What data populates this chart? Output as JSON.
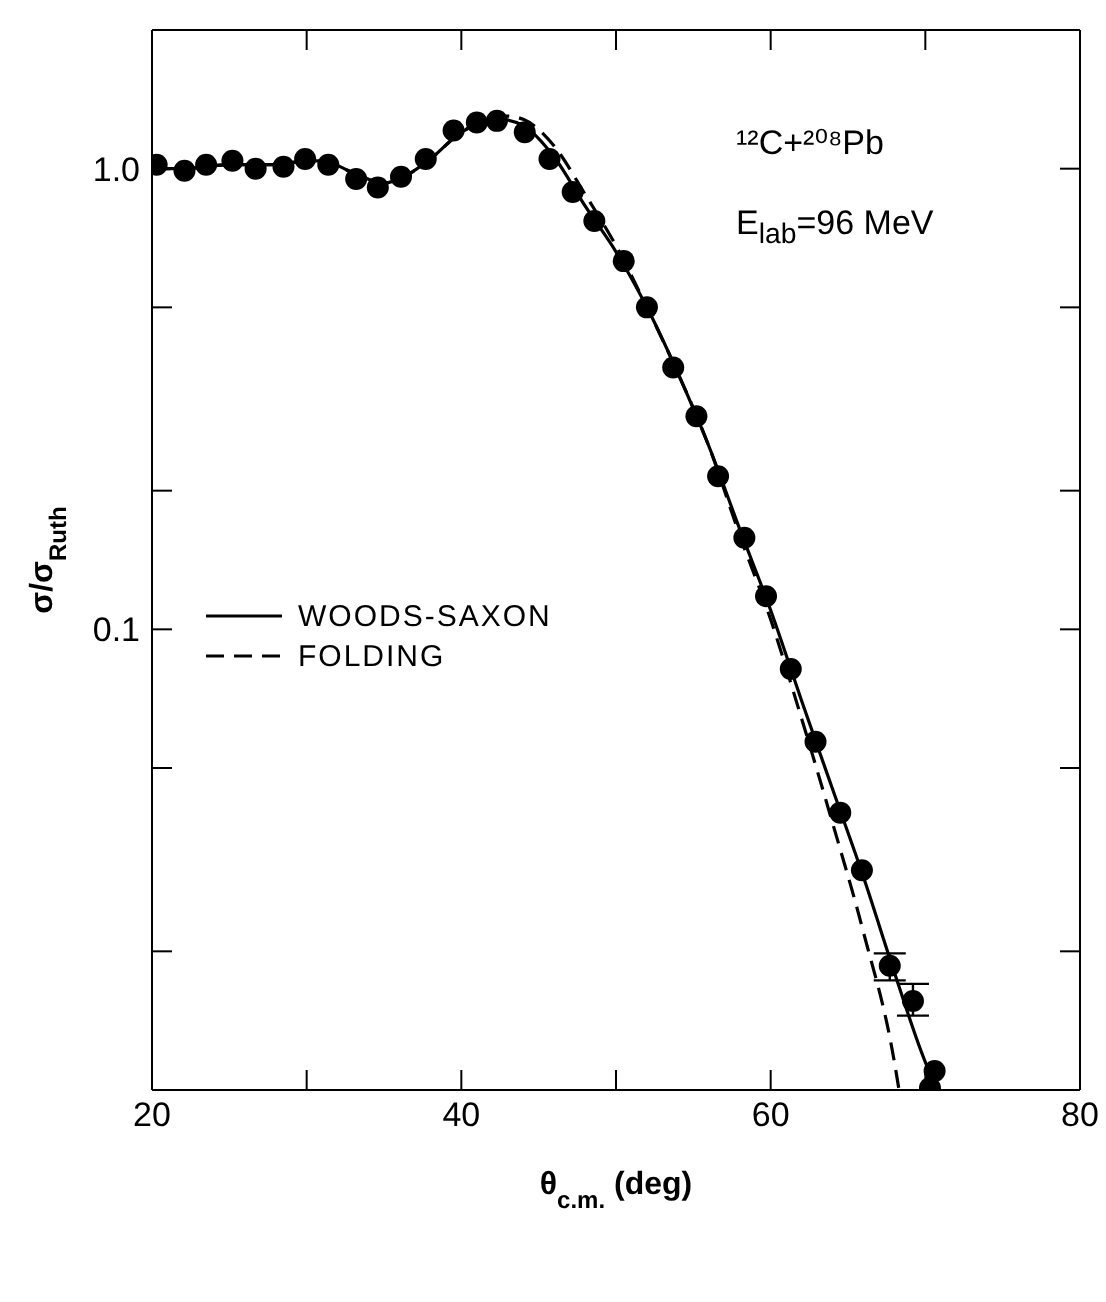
{
  "chart_data": {
    "type": "scatter",
    "xlabel": "θ$_{c.m.}$ (deg)",
    "ylabel": "σ/σ$_{Ruth}$",
    "annotations": [
      "¹²C+²⁰⁸Pb",
      "E$_{lab}$=96 MeV"
    ],
    "xlim": [
      20,
      80
    ],
    "xticks": [
      20,
      {
        "value": 30,
        "label": null
      },
      40,
      {
        "value": 50,
        "label": null
      },
      60,
      {
        "value": 70,
        "label": null
      },
      80
    ],
    "ylim": [
      0.01,
      2
    ],
    "yticks": [
      {
        "value": 0.01,
        "label": null
      },
      {
        "value": 0.02,
        "label": null
      },
      {
        "value": 0.05,
        "label": null
      },
      0.1,
      {
        "value": 0.2,
        "label": null
      },
      {
        "value": 0.5,
        "label": null
      },
      {
        "value": 1,
        "label": "1.0"
      },
      {
        "value": 2,
        "label": null
      }
    ],
    "log": "y",
    "grid": false,
    "legend": "left",
    "series": [
      {
        "color": "#000000",
        "marker": "circle",
        "x": [
          20.3,
          22.1,
          23.5,
          25.2,
          26.7,
          28.5,
          29.9,
          31.4,
          33.2,
          34.6,
          36.1,
          37.7,
          39.5,
          41.0,
          42.3,
          44.1,
          45.7,
          47.2,
          48.6,
          50.5,
          52.0,
          53.7,
          55.2,
          56.6,
          58.3,
          59.7,
          61.3,
          62.9,
          64.5,
          65.9,
          67.7,
          69.2,
          70.6,
          70.3
        ],
        "values": [
          1.02,
          0.99,
          1.02,
          1.04,
          1.0,
          1.01,
          1.05,
          1.02,
          0.95,
          0.91,
          0.96,
          1.05,
          1.21,
          1.26,
          1.27,
          1.2,
          1.05,
          0.89,
          0.77,
          0.63,
          0.5,
          0.37,
          0.29,
          0.215,
          0.158,
          0.118,
          0.082,
          0.057,
          0.04,
          0.03,
          0.0186,
          0.0156,
          0.011,
          0.0101
        ],
        "errors": [
          null,
          null,
          null,
          null,
          null,
          null,
          null,
          null,
          null,
          null,
          null,
          null,
          null,
          null,
          null,
          null,
          null,
          null,
          null,
          null,
          null,
          null,
          null,
          null,
          null,
          null,
          null,
          null,
          null,
          null,
          [
            0.0173,
            0.0198
          ],
          [
            0.0145,
            0.017
          ],
          null,
          null
        ]
      },
      {
        "type": "line",
        "name": "WOODS-SAXON",
        "color": "#000000",
        "line_style": "solid",
        "marker": "none",
        "x": [
          20,
          22,
          25,
          28,
          30,
          31,
          33,
          35,
          36,
          38,
          40,
          42.5,
          44,
          46,
          48,
          50,
          52,
          54,
          56,
          58,
          60,
          62,
          64,
          66,
          68,
          70,
          70.8
        ],
        "values": [
          1.0,
          1.0,
          1.02,
          1.02,
          1.04,
          1.04,
          0.98,
          0.93,
          0.95,
          1.05,
          1.2,
          1.28,
          1.24,
          1.06,
          0.83,
          0.66,
          0.5,
          0.36,
          0.25,
          0.165,
          0.11,
          0.07,
          0.045,
          0.029,
          0.018,
          0.0115,
          0.01
        ]
      },
      {
        "type": "line",
        "name": "FOLDING",
        "color": "#000000",
        "line_style": "dashed",
        "marker": "none",
        "x": [
          20,
          22,
          25,
          28,
          30,
          31,
          33,
          35,
          36,
          38,
          40,
          43,
          44,
          46,
          48,
          50,
          52,
          54,
          56,
          58,
          60,
          62,
          64,
          66,
          68,
          68.3
        ],
        "values": [
          1.0,
          1.0,
          1.02,
          1.02,
          1.04,
          1.04,
          0.98,
          0.93,
          0.95,
          1.05,
          1.2,
          1.3,
          1.28,
          1.12,
          0.88,
          0.68,
          0.5,
          0.36,
          0.25,
          0.16,
          0.105,
          0.064,
          0.038,
          0.022,
          0.0115,
          0.01
        ]
      }
    ]
  }
}
